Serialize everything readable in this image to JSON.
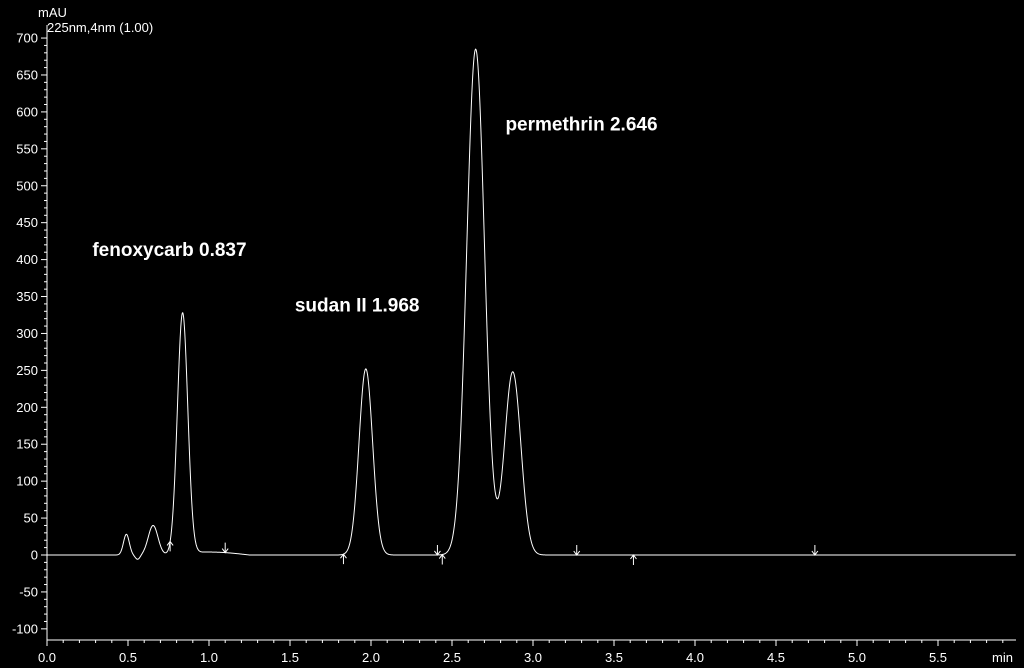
{
  "chart_data": {
    "type": "line",
    "title": "",
    "ylabel": "mAU",
    "xlabel": "min",
    "channel_label": "225nm,4nm (1.00)",
    "xlim": [
      0.0,
      6.0
    ],
    "ylim": [
      -110,
      715
    ],
    "xticks": [
      0.0,
      0.5,
      1.0,
      1.5,
      2.0,
      2.5,
      3.0,
      3.5,
      4.0,
      4.5,
      5.0,
      5.5
    ],
    "xtick_labels": [
      "0.0",
      "0.5",
      "1.0",
      "1.5",
      "2.0",
      "2.5",
      "3.0",
      "3.5",
      "4.0",
      "4.5",
      "5.0",
      "5.5"
    ],
    "yticks": [
      -100,
      -50,
      0,
      50,
      100,
      150,
      200,
      250,
      300,
      350,
      400,
      450,
      500,
      550,
      600,
      650,
      700
    ],
    "ytick_labels": [
      "-100",
      "-50",
      "0",
      "50",
      "100",
      "150",
      "200",
      "250",
      "300",
      "350",
      "400",
      "450",
      "500",
      "550",
      "600",
      "650",
      "700"
    ],
    "grid": false,
    "line_color": "#ffffff",
    "background": "#000000",
    "peaks": [
      {
        "rt": 0.49,
        "height": 28,
        "width": 0.018
      },
      {
        "rt": 0.56,
        "height": -6,
        "width": 0.015
      },
      {
        "rt": 0.655,
        "height": 40,
        "width": 0.03
      },
      {
        "rt": 0.837,
        "height": 326,
        "width": 0.032
      },
      {
        "rt": 1.968,
        "height": 252,
        "width": 0.042
      },
      {
        "rt": 2.646,
        "height": 685,
        "width": 0.055
      },
      {
        "rt": 2.875,
        "height": 248,
        "width": 0.05
      }
    ],
    "baseline_offset": [
      {
        "from": 0.75,
        "to": 1.25,
        "level": 4
      }
    ],
    "integration_markers": [
      {
        "x": 0.76,
        "dir": "up"
      },
      {
        "x": 1.1,
        "dir": "down"
      },
      {
        "x": 1.83,
        "dir": "up"
      },
      {
        "x": 2.41,
        "dir": "down"
      },
      {
        "x": 2.44,
        "dir": "up"
      },
      {
        "x": 3.27,
        "dir": "down"
      },
      {
        "x": 3.62,
        "dir": "up"
      },
      {
        "x": 4.74,
        "dir": "down"
      }
    ],
    "annotations": [
      {
        "text": "fenoxycarb 0.837",
        "x": 0.28,
        "y": 405
      },
      {
        "text": "sudan II 1.968",
        "x": 1.53,
        "y": 330
      },
      {
        "text": "permethrin 2.646",
        "x": 2.83,
        "y": 575
      }
    ]
  }
}
